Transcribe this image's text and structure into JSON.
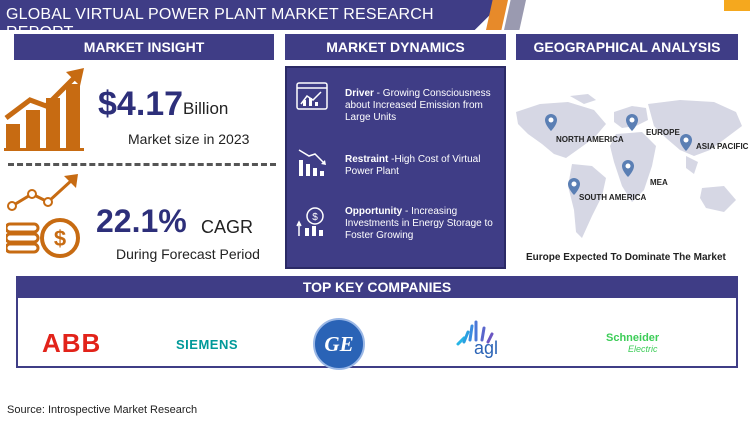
{
  "header": {
    "title": "GLOBAL VIRTUAL POWER PLANT MARKET RESEARCH REPORT"
  },
  "sections": {
    "insight": "MARKET INSIGHT",
    "dynamics": "MARKET DYNAMICS",
    "geo": "GEOGRAPHICAL ANALYSIS",
    "companies": "TOP KEY COMPANIES"
  },
  "insight": {
    "market_size_value": "$4.17",
    "market_size_unit": "Billion",
    "market_size_label": "Market size in 2023",
    "cagr_value": "22.1%",
    "cagr_unit": "CAGR",
    "cagr_label": "During Forecast Period"
  },
  "dynamics": {
    "driver_label": "Driver",
    "driver_text": " - Growing Consciousness about Increased Emission from Large Units",
    "restraint_label": "Restraint",
    "restraint_text": " -High Cost of Virtual Power Plant",
    "opportunity_label": "Opportunity",
    "opportunity_text": " - Increasing Investments in Energy Storage to Foster Growing"
  },
  "geo": {
    "regions": [
      "NORTH AMERICA",
      "EUROPE",
      "ASIA PACIFIC",
      "MEA",
      "SOUTH AMERICA"
    ],
    "caption": "Europe Expected To Dominate The Market"
  },
  "companies": {
    "abb": "ABB",
    "siemens": "SIEMENS",
    "ge": "GE",
    "agl": "agl",
    "schneider_1": "Schneider",
    "schneider_2": "Electric"
  },
  "footer": {
    "source": "Source: Introspective Market Research"
  },
  "colors": {
    "navy": "#3f3d86",
    "orange": "#c76b12",
    "gold": "#f5a81e",
    "abb_red": "#e2231a",
    "siemens_teal": "#009999",
    "ge_blue": "#2a63b6",
    "schneider_green": "#3dcd58"
  }
}
